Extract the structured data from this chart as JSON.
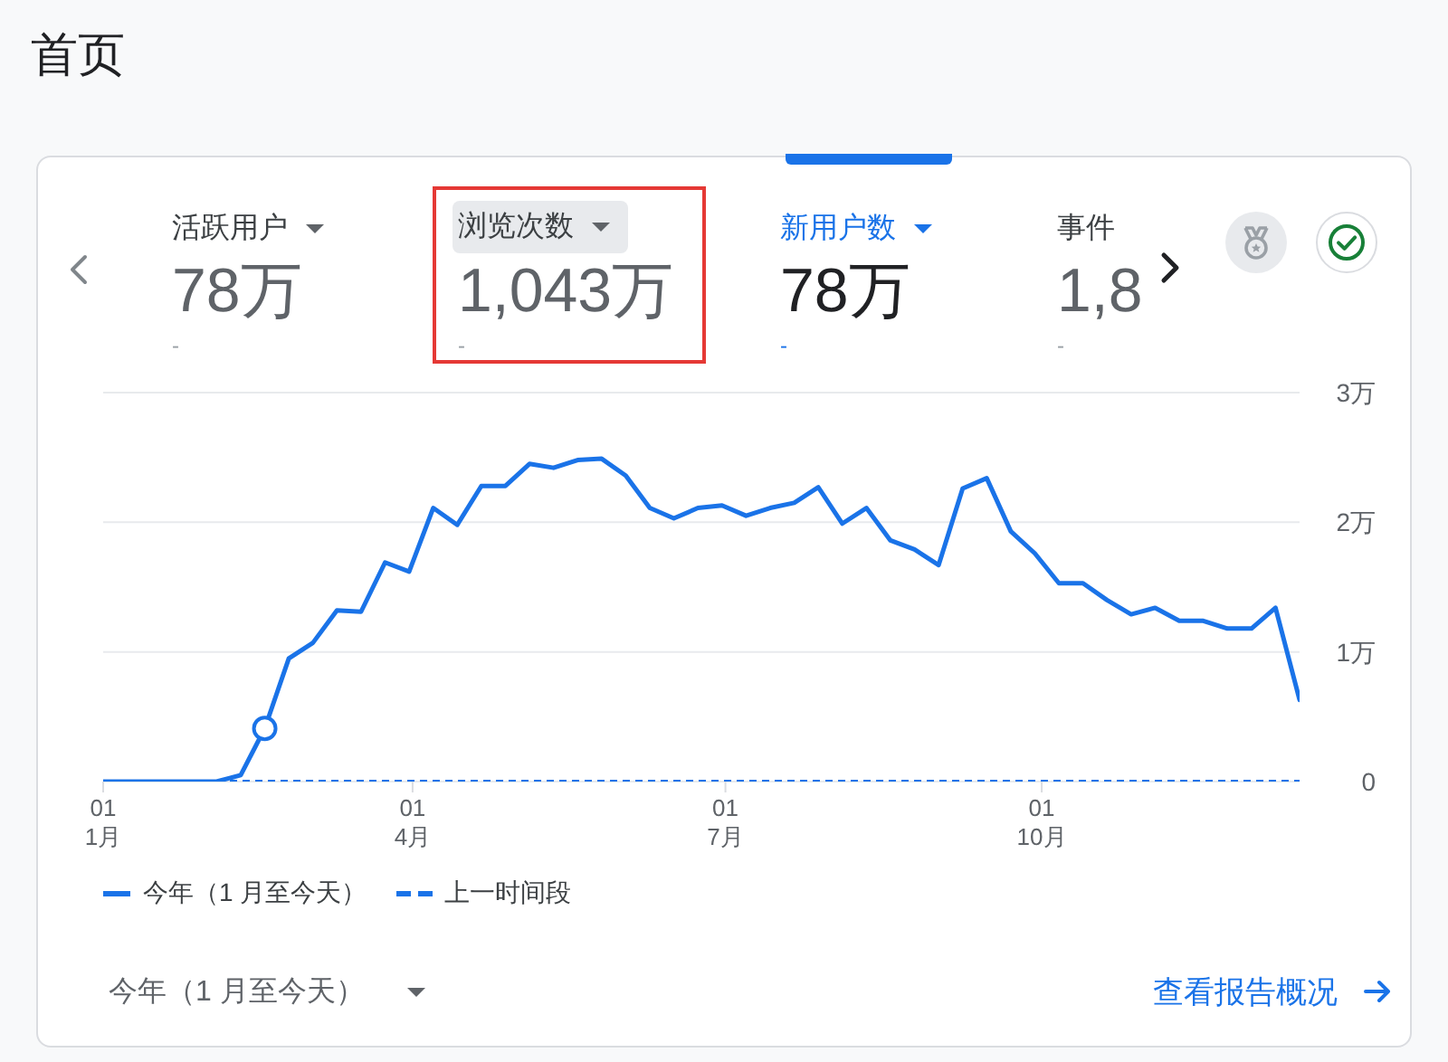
{
  "chart_data": {
    "type": "line",
    "title": "首页",
    "annotations": [
      "活跃用户",
      "78万",
      "-",
      "浏览次数",
      "1,043万",
      "-",
      "新用户数",
      "78万",
      "-",
      "事件",
      "1,8",
      "-",
      "今年（1 月至今天）",
      "查看报告概况"
    ],
    "x": [
      "--01-01",
      "--01-06",
      "--01-13",
      "--01-20",
      "--01-27",
      "--02-03",
      "--02-10",
      "--02-17",
      "--02-24",
      "--03-03",
      "--03-10",
      "--03-17",
      "--03-24",
      "--03-31",
      "--04-07",
      "--04-14",
      "--04-21",
      "--04-28",
      "--05-05",
      "--05-12",
      "--05-19",
      "--05-26",
      "--06-02",
      "--06-09",
      "--06-16",
      "--06-23",
      "--06-30",
      "--07-07",
      "--07-14",
      "--07-21",
      "--07-28",
      "--08-04",
      "--08-11",
      "--08-18",
      "--08-25",
      "--09-01",
      "--09-08",
      "--09-15",
      "--09-22",
      "--09-29",
      "--10-06",
      "--10-13",
      "--10-20",
      "--10-27",
      "--11-03",
      "--11-10",
      "--11-17",
      "--11-24",
      "--12-01",
      "--12-08",
      "--12-15"
    ],
    "xlim": [
      "--01-01",
      "--12-15"
    ],
    "xticks": [
      {
        "value": "--01-01",
        "label": "01\n1月"
      },
      {
        "value": "--04-01",
        "label": "01\n4月"
      },
      {
        "value": "--07-01",
        "label": "01\n7月"
      },
      {
        "value": "--10-01",
        "label": "01\n10月"
      }
    ],
    "ylim": [
      0,
      3
    ],
    "yticks": [
      0,
      {
        "value": 1,
        "label": "1万"
      },
      {
        "value": 2,
        "label": "2万"
      },
      {
        "value": 3,
        "label": "3万"
      }
    ],
    "series": [
      {
        "name": "今年（1 月至今天）",
        "color": "#1a73e8",
        "values": [
          0,
          0,
          0,
          0,
          0,
          0,
          0.05,
          0.41,
          0.95,
          1.07,
          1.32,
          1.31,
          1.69,
          1.62,
          2.11,
          1.98,
          2.28,
          2.28,
          2.45,
          2.42,
          2.48,
          2.49,
          2.36,
          2.11,
          2.03,
          2.11,
          2.13,
          2.05,
          2.11,
          2.15,
          2.27,
          1.99,
          2.11,
          1.86,
          1.79,
          1.67,
          2.26,
          2.34,
          1.93,
          1.76,
          1.53,
          1.53,
          1.4,
          1.29,
          1.34,
          1.24,
          1.24,
          1.18,
          1.18,
          1.34,
          0.63
        ]
      },
      {
        "name": "上一时间段",
        "color": "#1a73e8",
        "line_style": "dashed",
        "x": [
          "--01-01",
          "--12-15"
        ],
        "values": [
          0,
          0
        ]
      },
      {
        "type": "scatter",
        "color": "#1a73e8",
        "marker": "circle",
        "x": [
          "--02-17"
        ],
        "values": [
          0.41
        ]
      }
    ],
    "grid": "y",
    "legend": "bottom left"
  }
}
